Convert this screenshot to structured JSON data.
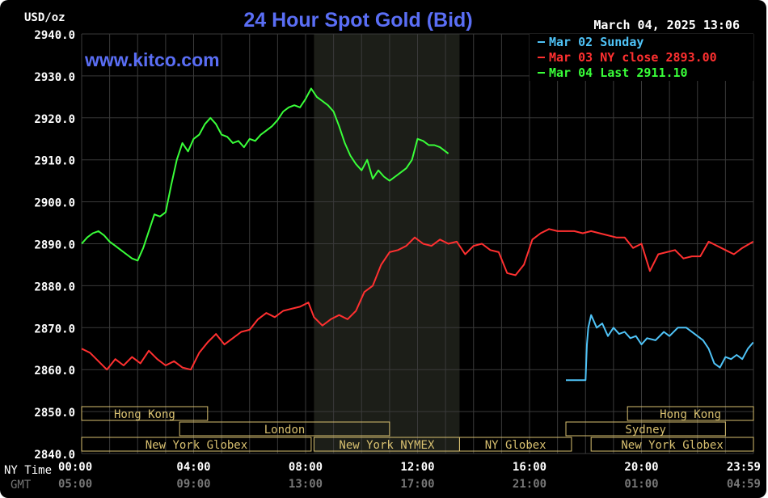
{
  "header": {
    "unit": "USD/oz",
    "title": "24 Hour Spot Gold (Bid)",
    "timestamp": "March 04, 2025 13:06",
    "website": "www.kitco.com"
  },
  "colors": {
    "background": "#000000",
    "grid": "#3a3a3a",
    "axis_text": "#ffffff",
    "title": "#5a6ef5",
    "website": "#5a6ef5",
    "sunday": "#4fc3f7",
    "close": "#ff3030",
    "last": "#39ff39",
    "session_fill": "#1c1e18",
    "session_box": "#d8c070",
    "session_text": "#d8c070",
    "gmt_text": "#777777"
  },
  "time_axis": {
    "ny_label": "NY Time",
    "gmt_label": "GMT",
    "ny_ticks": [
      "00:00",
      "04:00",
      "08:00",
      "12:00",
      "16:00",
      "20:00",
      "23:59"
    ],
    "gmt_ticks": [
      "05:00",
      "09:00",
      "13:00",
      "17:00",
      "21:00",
      "01:00",
      "04:59"
    ],
    "tick_hours": [
      0,
      4,
      8,
      12,
      16,
      20,
      24
    ]
  },
  "sessions": [
    {
      "label": "Hong Kong",
      "start": 0,
      "end": 4.5
    },
    {
      "label": "London",
      "start": 3.5,
      "end": 11.0
    },
    {
      "label": "New York Globex",
      "start": 0,
      "end": 8.2
    },
    {
      "label": "New York NYMEX",
      "start": 8.3,
      "end": 13.5
    },
    {
      "label": "NY Globex",
      "start": 13.5,
      "end": 17.5
    },
    {
      "label": "Sydney",
      "start": 17.3,
      "end": 23.0
    },
    {
      "label": "Hong Kong",
      "start": 19.5,
      "end": 24.0
    },
    {
      "label": "New York Globex",
      "start": 18.2,
      "end": 24.0
    }
  ],
  "chart_data": {
    "type": "line",
    "title": "24 Hour Spot Gold (Bid)",
    "ylabel": "USD/oz",
    "xlabel": "NY Time",
    "ylim": [
      2840,
      2940
    ],
    "xlim": [
      0,
      24
    ],
    "y_ticks": [
      "2940.0",
      "2930.0",
      "2920.0",
      "2910.0",
      "2900.0",
      "2890.0",
      "2880.0",
      "2870.0",
      "2860.0",
      "2850.0",
      "2840.0"
    ],
    "grid": true,
    "legend": "top-right",
    "shaded_session": [
      8.3,
      13.5
    ],
    "series": [
      {
        "name": "Mar 02 Sunday",
        "legend_label": "Mar 02 Sunday",
        "color": "#4fc3f7",
        "x": [
          17.3,
          18.0,
          18.05,
          18.1,
          18.2,
          18.4,
          18.6,
          18.8,
          19.0,
          19.2,
          19.4,
          19.6,
          19.8,
          20.0,
          20.2,
          20.5,
          20.8,
          21.0,
          21.3,
          21.6,
          21.9,
          22.2,
          22.4,
          22.6,
          22.8,
          23.0,
          23.2,
          23.4,
          23.6,
          23.8,
          23.99
        ],
        "y": [
          2857.5,
          2857.5,
          2866.0,
          2870.0,
          2873.0,
          2870.0,
          2871.0,
          2868.0,
          2870.0,
          2868.5,
          2869.0,
          2867.5,
          2868.0,
          2866.0,
          2867.5,
          2867.0,
          2869.0,
          2868.0,
          2870.0,
          2870.0,
          2868.5,
          2867.0,
          2865.0,
          2861.5,
          2860.5,
          2863.0,
          2862.5,
          2863.5,
          2862.5,
          2865.0,
          2866.5
        ]
      },
      {
        "name": "Mar 03 NY close",
        "legend_label": "Mar 03 NY close 2893.00",
        "color": "#ff3030",
        "x": [
          0.0,
          0.3,
          0.6,
          0.9,
          1.2,
          1.5,
          1.8,
          2.1,
          2.4,
          2.7,
          3.0,
          3.3,
          3.6,
          3.9,
          4.2,
          4.5,
          4.8,
          5.1,
          5.4,
          5.7,
          6.0,
          6.3,
          6.6,
          6.9,
          7.2,
          7.5,
          7.8,
          8.1,
          8.3,
          8.6,
          8.9,
          9.2,
          9.5,
          9.8,
          10.1,
          10.4,
          10.7,
          11.0,
          11.3,
          11.6,
          11.9,
          12.2,
          12.5,
          12.8,
          13.1,
          13.4,
          13.7,
          14.0,
          14.3,
          14.6,
          14.9,
          15.2,
          15.5,
          15.8,
          16.1,
          16.4,
          16.7,
          17.0,
          17.3,
          17.6,
          17.9,
          18.2,
          18.5,
          18.8,
          19.1,
          19.4,
          19.7,
          20.0,
          20.3,
          20.6,
          20.9,
          21.2,
          21.5,
          21.8,
          22.1,
          22.4,
          22.7,
          23.0,
          23.3,
          23.6,
          23.99
        ],
        "y": [
          2865.0,
          2864.0,
          2862.0,
          2860.0,
          2862.5,
          2861.0,
          2863.0,
          2861.5,
          2864.5,
          2862.5,
          2861.0,
          2862.0,
          2860.5,
          2860.0,
          2864.0,
          2866.5,
          2868.5,
          2866.0,
          2867.5,
          2869.0,
          2869.5,
          2872.0,
          2873.5,
          2872.5,
          2874.0,
          2874.5,
          2875.0,
          2876.0,
          2872.5,
          2870.5,
          2872.0,
          2873.0,
          2872.0,
          2874.0,
          2878.5,
          2880.0,
          2885.0,
          2888.0,
          2888.5,
          2889.5,
          2891.5,
          2890.0,
          2889.5,
          2891.0,
          2890.0,
          2890.5,
          2887.5,
          2889.5,
          2890.0,
          2888.5,
          2888.0,
          2883.0,
          2882.5,
          2885.0,
          2891.0,
          2892.5,
          2893.5,
          2893.0,
          2893.0,
          2893.0,
          2892.5,
          2893.0,
          2892.5,
          2892.0,
          2891.5,
          2891.5,
          2889.0,
          2890.0,
          2883.5,
          2887.5,
          2888.0,
          2888.5,
          2886.5,
          2887.0,
          2887.0,
          2890.5,
          2889.5,
          2888.5,
          2887.5,
          2889.0,
          2890.5
        ]
      },
      {
        "name": "Mar 04 Last",
        "legend_label": "Mar 04 Last 2911.10",
        "color": "#39ff39",
        "x": [
          0.0,
          0.2,
          0.4,
          0.6,
          0.8,
          1.0,
          1.2,
          1.4,
          1.6,
          1.8,
          2.0,
          2.2,
          2.4,
          2.6,
          2.8,
          3.0,
          3.2,
          3.4,
          3.6,
          3.8,
          4.0,
          4.2,
          4.4,
          4.6,
          4.8,
          5.0,
          5.2,
          5.4,
          5.6,
          5.8,
          6.0,
          6.2,
          6.4,
          6.6,
          6.8,
          7.0,
          7.2,
          7.4,
          7.6,
          7.8,
          8.0,
          8.2,
          8.4,
          8.6,
          8.8,
          9.0,
          9.2,
          9.4,
          9.6,
          9.8,
          10.0,
          10.2,
          10.4,
          10.6,
          10.8,
          11.0,
          11.2,
          11.4,
          11.6,
          11.8,
          12.0,
          12.2,
          12.4,
          12.6,
          12.8,
          13.0,
          13.1
        ],
        "y": [
          2890.0,
          2891.5,
          2892.5,
          2893.0,
          2892.0,
          2890.5,
          2889.5,
          2888.5,
          2887.5,
          2886.5,
          2886.0,
          2889.0,
          2893.0,
          2897.0,
          2896.5,
          2897.5,
          2904.0,
          2910.0,
          2914.0,
          2912.0,
          2915.0,
          2916.0,
          2918.5,
          2920.0,
          2918.5,
          2916.0,
          2915.5,
          2914.0,
          2914.5,
          2913.0,
          2915.0,
          2914.5,
          2916.0,
          2917.0,
          2918.0,
          2919.5,
          2921.5,
          2922.5,
          2923.0,
          2922.5,
          2924.5,
          2927.0,
          2925.0,
          2924.0,
          2923.0,
          2921.5,
          2918.0,
          2914.0,
          2911.0,
          2909.0,
          2907.5,
          2910.0,
          2905.5,
          2907.5,
          2906.0,
          2905.0,
          2906.0,
          2907.0,
          2908.0,
          2910.0,
          2915.0,
          2914.5,
          2913.5,
          2913.5,
          2913.0,
          2912.0,
          2911.5
        ]
      }
    ]
  }
}
